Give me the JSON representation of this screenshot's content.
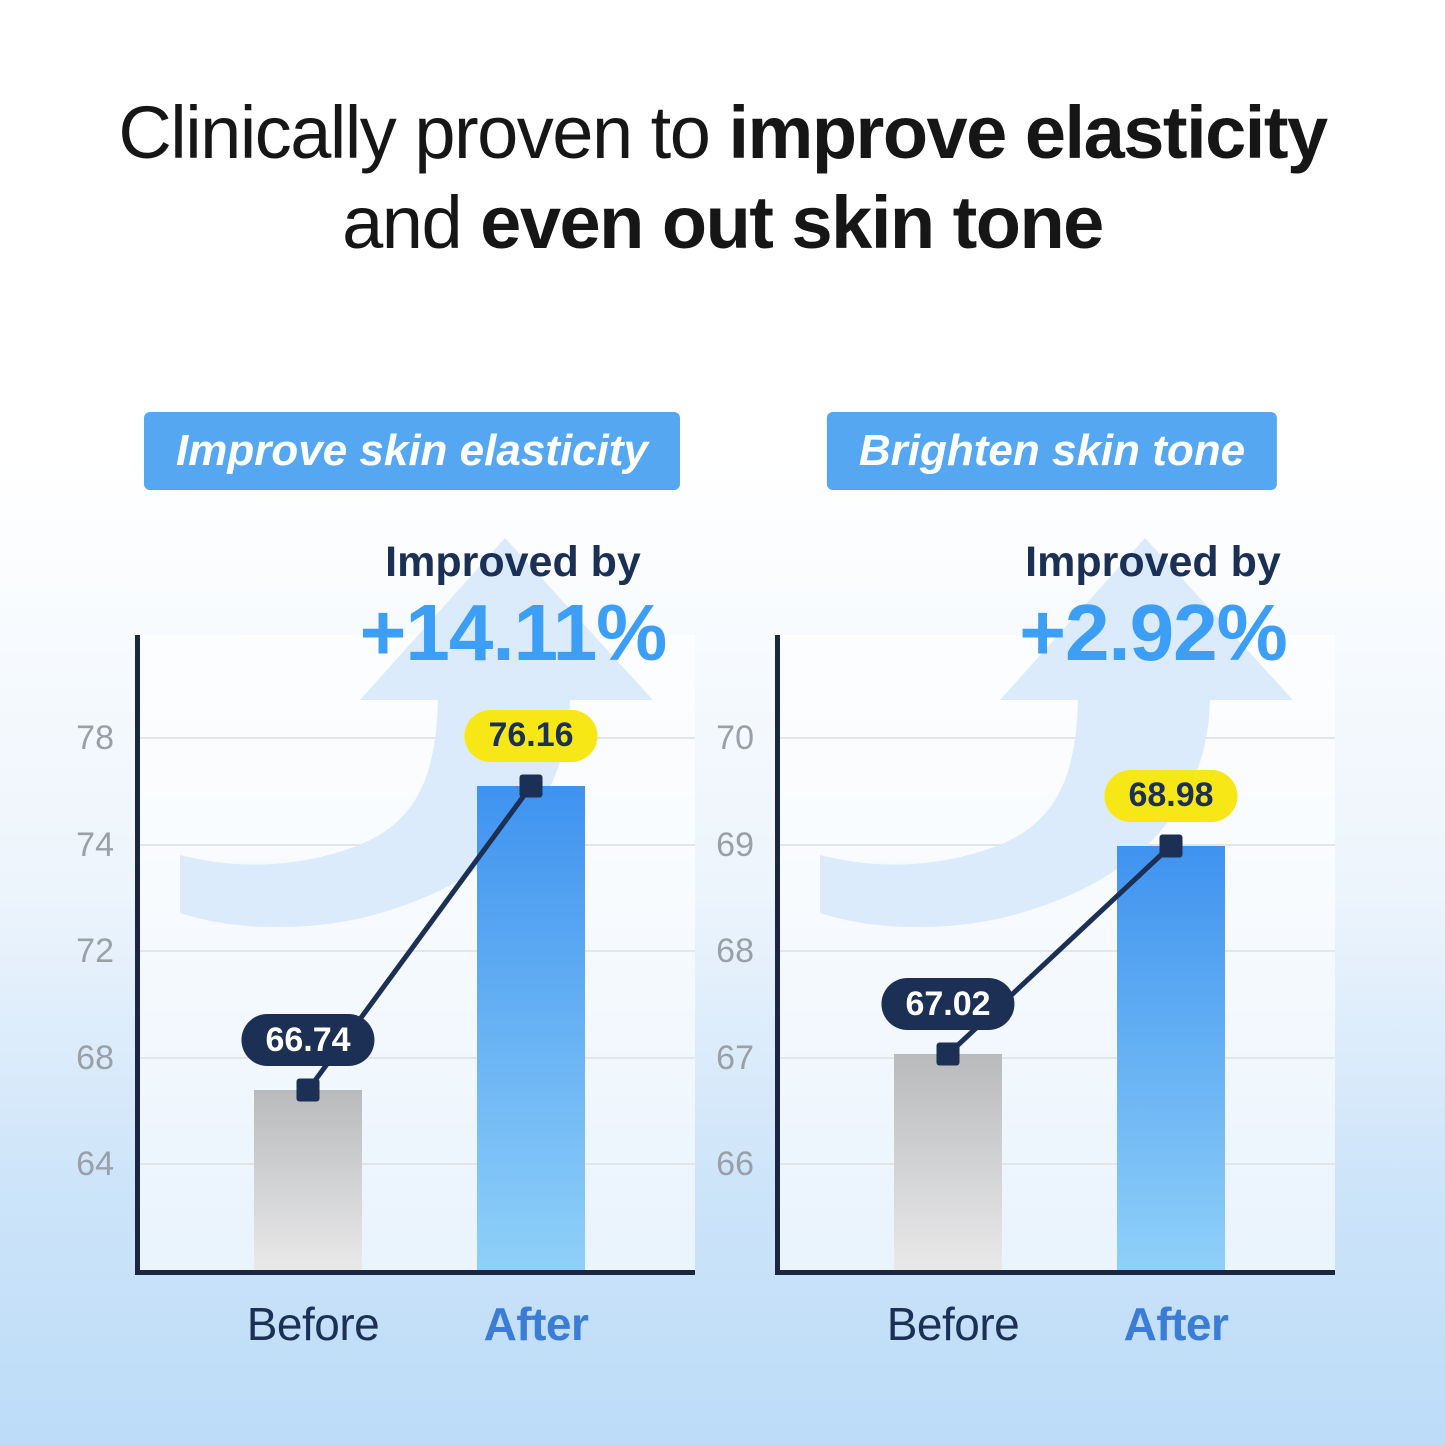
{
  "title": {
    "line1_regular": "Clinically proven to ",
    "line1_bold": "improve elasticity",
    "line2_regular": "and ",
    "line2_bold": "even out skin tone"
  },
  "colors": {
    "badge_bg": "#55a7f2",
    "accent_blue": "#3d9ef6",
    "navy": "#1c2f55",
    "axis_navy": "#1b2740",
    "pill_yellow": "#f8e716",
    "after_label_blue": "#3b7cd5",
    "bar_blue_top": "#3f93ef",
    "bar_blue_bottom": "#8fd0f9",
    "bar_gray_top": "#b9babc",
    "bar_gray_bottom": "#e9e9ea",
    "gridline": "#e3e6e9",
    "tick_gray": "#9aa0a8",
    "arrow_fill": "#dcebfb"
  },
  "chart_data": [
    {
      "type": "bar",
      "title_badge": "Improve skin elasticity",
      "improved_by_label": "Improved by",
      "improvement": "+14.11%",
      "categories": [
        "Before",
        "After"
      ],
      "values": [
        66.74,
        76.16
      ],
      "value_labels": [
        "66.74",
        "76.16"
      ],
      "yticks": [
        78,
        74,
        72,
        68,
        64
      ],
      "ylim": [
        60,
        80
      ],
      "grid": true,
      "legend_position": "none"
    },
    {
      "type": "bar",
      "title_badge": "Brighten skin tone",
      "improved_by_label": "Improved by",
      "improvement": "+2.92%",
      "categories": [
        "Before",
        "After"
      ],
      "values": [
        67.02,
        68.98
      ],
      "value_labels": [
        "67.02",
        "68.98"
      ],
      "yticks": [
        70,
        69,
        68,
        67,
        66
      ],
      "ylim": [
        65,
        71
      ],
      "grid": true,
      "legend_position": "none"
    }
  ]
}
